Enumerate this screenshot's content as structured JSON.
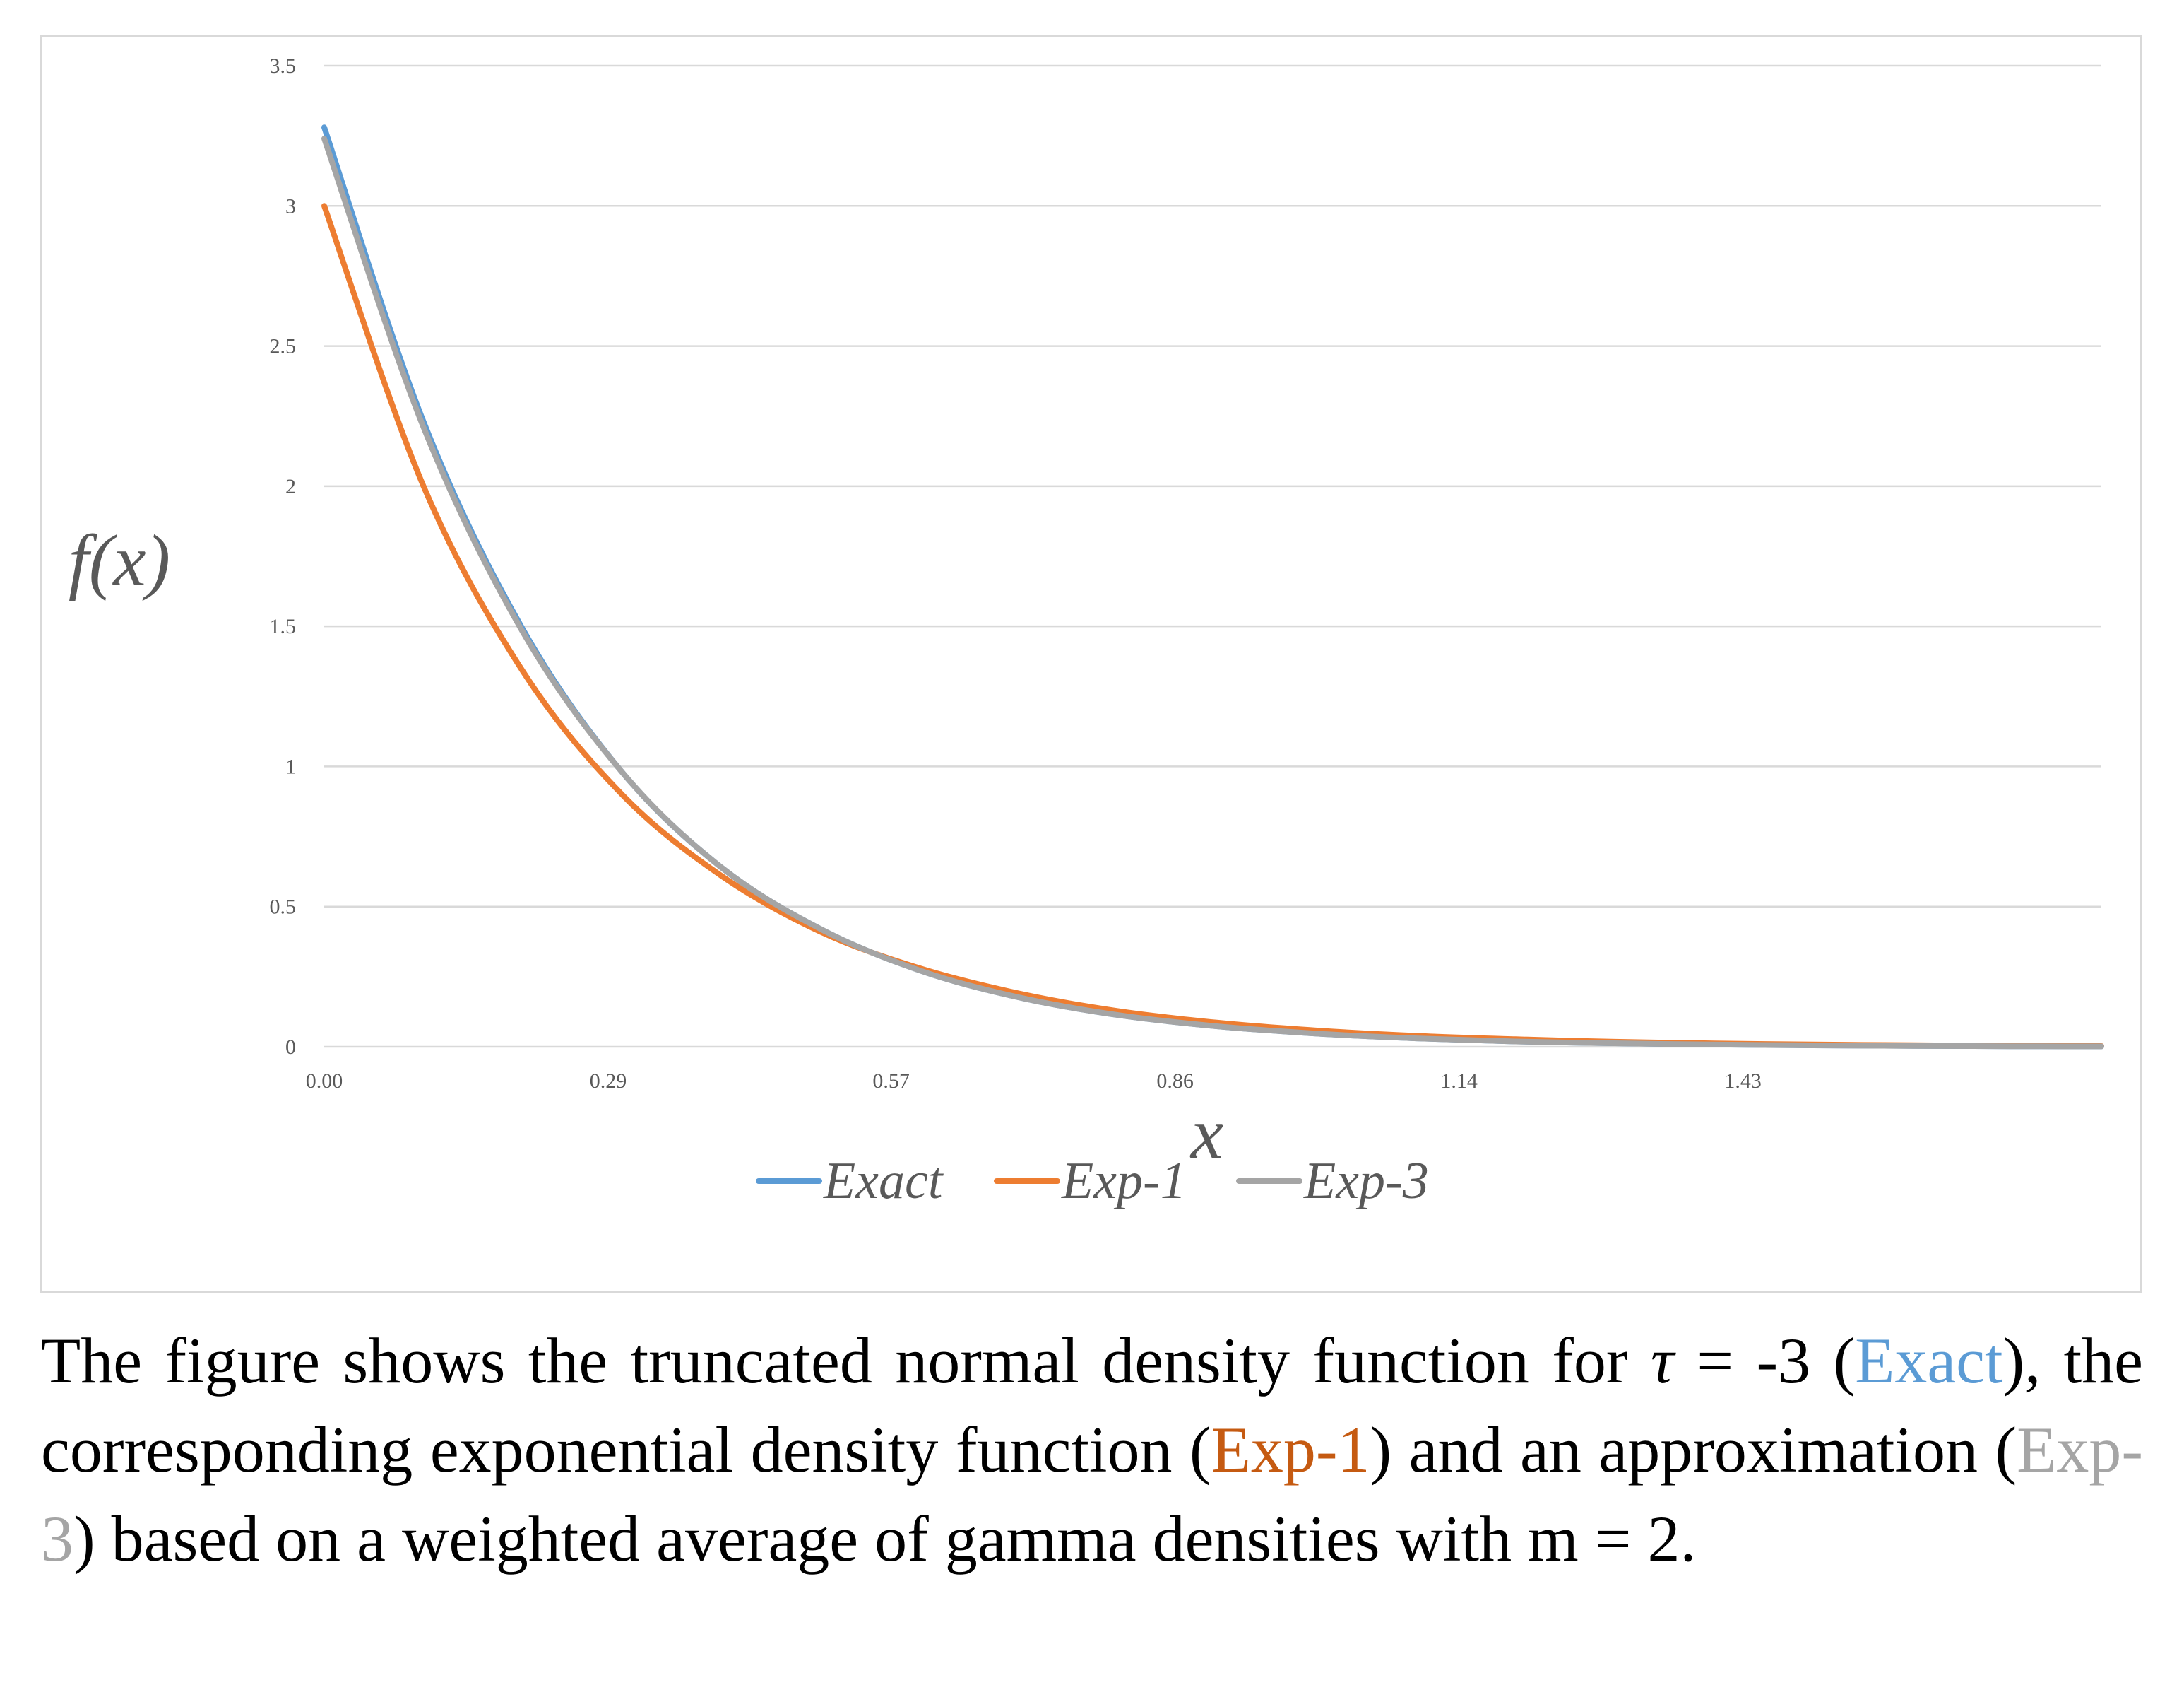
{
  "colors": {
    "exact": "#5b9bd5",
    "exp1": "#ed7d31",
    "exp3": "#a5a5a5",
    "grid": "#d9d9d9",
    "text": "#595959"
  },
  "chart_data": {
    "type": "line",
    "title": "",
    "xlabel": "x",
    "ylabel": "f(x)",
    "xlim": [
      0,
      1.79
    ],
    "ylim": [
      0,
      3.5
    ],
    "grid": true,
    "legend_position": "bottom",
    "x_tick_labels": [
      "0.00",
      "0.29",
      "0.57",
      "0.86",
      "1.14",
      "1.43"
    ],
    "x_tick_values": [
      0,
      0.286,
      0.571,
      0.857,
      1.143,
      1.429
    ],
    "y_tick_labels": [
      "0",
      "0.5",
      "1",
      "1.5",
      "2",
      "2.5",
      "3",
      "3.5"
    ],
    "y_tick_values": [
      0,
      0.5,
      1,
      1.5,
      2,
      2.5,
      3,
      3.5
    ],
    "x": [
      0,
      0.1,
      0.2,
      0.3,
      0.4,
      0.5,
      0.6,
      0.7,
      0.8,
      0.9,
      1.0,
      1.1,
      1.2,
      1.3,
      1.4,
      1.5,
      1.6,
      1.7,
      1.79
    ],
    "series": [
      {
        "name": "Exact",
        "key": "exact",
        "values": [
          3.28,
          2.23,
          1.49,
          0.98,
          0.64,
          0.42,
          0.272,
          0.176,
          0.113,
          0.073,
          0.047,
          0.03,
          0.019,
          0.0125,
          0.008,
          0.005,
          0.0033,
          0.0021,
          0.0014
        ]
      },
      {
        "name": "Exp-1",
        "key": "exp1",
        "values": [
          3.0,
          2.0,
          1.34,
          0.9,
          0.61,
          0.41,
          0.28,
          0.19,
          0.127,
          0.086,
          0.058,
          0.039,
          0.027,
          0.018,
          0.012,
          0.0082,
          0.0055,
          0.0037,
          0.0026
        ]
      },
      {
        "name": "Exp-3",
        "key": "exp3",
        "values": [
          3.24,
          2.21,
          1.48,
          0.98,
          0.64,
          0.42,
          0.272,
          0.176,
          0.113,
          0.073,
          0.047,
          0.03,
          0.019,
          0.0125,
          0.008,
          0.005,
          0.0033,
          0.0021,
          0.0014
        ]
      }
    ]
  },
  "caption": {
    "part1": "The figure shows the truncated normal density function for ",
    "tau_symbol": "τ",
    "part2": " = -3 (",
    "exact_label": "Exact",
    "part3": "), the corresponding exponential density function (",
    "exp1_label": "Exp-1",
    "part4": ") and an approximation (",
    "exp3_label": "Exp-3",
    "part5": ") based on a weighted average of gamma densities with m = 2."
  }
}
